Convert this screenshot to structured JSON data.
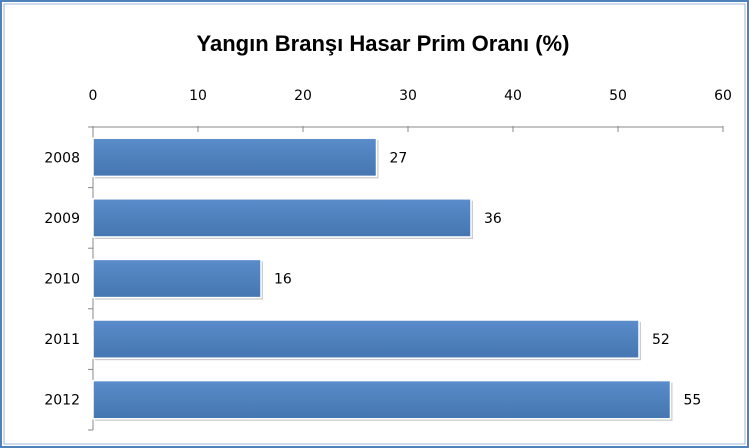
{
  "chart_data": {
    "type": "bar",
    "orientation": "horizontal",
    "title": "Yangın Branşı Hasar Prim Oranı (%)",
    "categories": [
      "2008",
      "2009",
      "2010",
      "2011",
      "2012"
    ],
    "values": [
      27,
      36,
      16,
      52,
      55
    ],
    "color": "#4f81bd",
    "xlim": [
      0,
      60
    ],
    "xticks": [
      0,
      10,
      20,
      30,
      40,
      50,
      60
    ],
    "data_labels": true,
    "grid": false
  }
}
